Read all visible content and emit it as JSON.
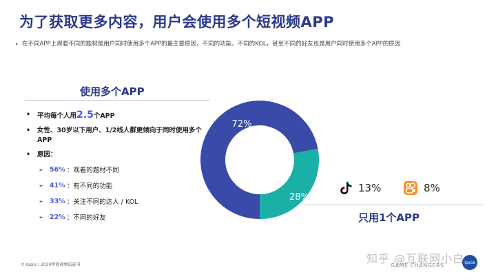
{
  "title": "为了获取更多内容，用户会使用多个短视频APP",
  "intro": "在不同APP上观看不同的题材是用户同时使用多个APP的最主要原因，不同的功能、不同的KOL，甚至不同的好友也是用户同时使用多个APP的原因",
  "section_title": "使用多个APP",
  "bullets": {
    "mark": "•",
    "avg_prefix": "平均每个人用",
    "avg_value": "2.5",
    "avg_suffix": "个APP",
    "demo": "女性、30岁以下用户、1/2线人群更倾向于同时使用多个APP",
    "reasons_label": "原因："
  },
  "reasons": [
    {
      "pct": "56%",
      "text": "观看的题材不同"
    },
    {
      "pct": "41%",
      "text": "有不同的功能"
    },
    {
      "pct": "33%",
      "text": "关注不同的达人 / KOL"
    },
    {
      "pct": "22%",
      "text": "不同的好友"
    }
  ],
  "reason_arrow": "➢",
  "reason_sep": "：",
  "single_app": {
    "title": "只用1个APP",
    "apps": [
      {
        "icon": "douyin-icon",
        "pct": "13%"
      },
      {
        "icon": "kuaishou-icon",
        "pct": "8%"
      }
    ]
  },
  "footer": "© Ipsos | 2020年短视频白皮书",
  "watermark": "知乎 @互联网小白",
  "brand": "GAME CHANGERS",
  "logo_text": "Ipsos",
  "colors": {
    "multi": "#3a4aa8",
    "single": "#1ab0a8",
    "title": "#2c3a8c",
    "accent": "#4a5bd6"
  },
  "chart_data": {
    "type": "pie",
    "categories": [
      "使用多个APP",
      "只用1个APP"
    ],
    "values": [
      72,
      28
    ],
    "labels": [
      "72%",
      "28%"
    ],
    "donut": true
  }
}
